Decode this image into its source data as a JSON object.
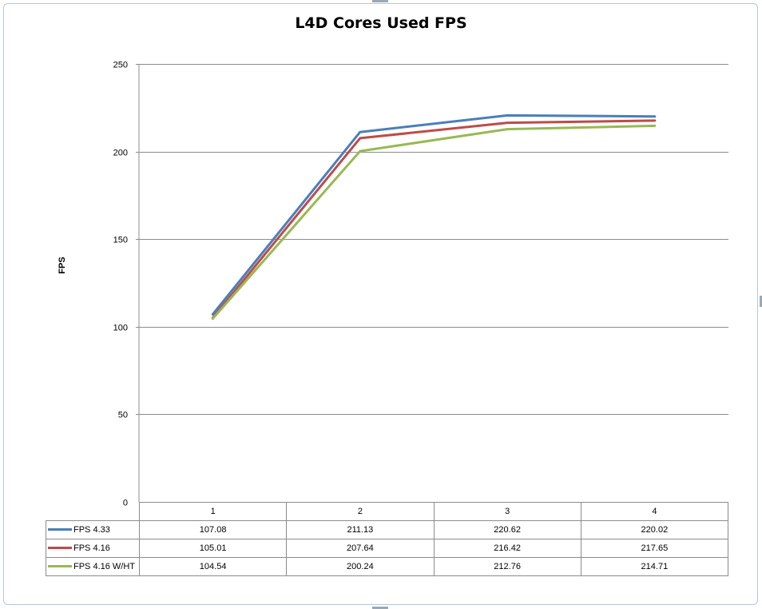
{
  "chart_data": {
    "type": "line",
    "title": "L4D Cores Used FPS",
    "xlabel": "",
    "ylabel": "FPS",
    "categories": [
      "1",
      "2",
      "3",
      "4"
    ],
    "ylim": [
      0,
      250
    ],
    "yticks": [
      0,
      50,
      100,
      150,
      200,
      250
    ],
    "grid": true,
    "legend": "data-table-bottom",
    "series": [
      {
        "name": "FPS 4.33",
        "color": "#4a7ebb",
        "values": [
          107.08,
          211.13,
          220.62,
          220.02
        ],
        "labels": [
          "107.08",
          "211.13",
          "220.62",
          "220.02"
        ]
      },
      {
        "name": "FPS 4.16",
        "color": "#be4b48",
        "values": [
          105.01,
          207.64,
          216.42,
          217.65
        ],
        "labels": [
          "105.01",
          "207.64",
          "216.42",
          "217.65"
        ]
      },
      {
        "name": "FPS 4.16 W/HT",
        "color": "#98b954",
        "values": [
          104.54,
          200.24,
          212.76,
          214.71
        ],
        "labels": [
          "104.54",
          "200.24",
          "212.76",
          "214.71"
        ]
      }
    ]
  }
}
